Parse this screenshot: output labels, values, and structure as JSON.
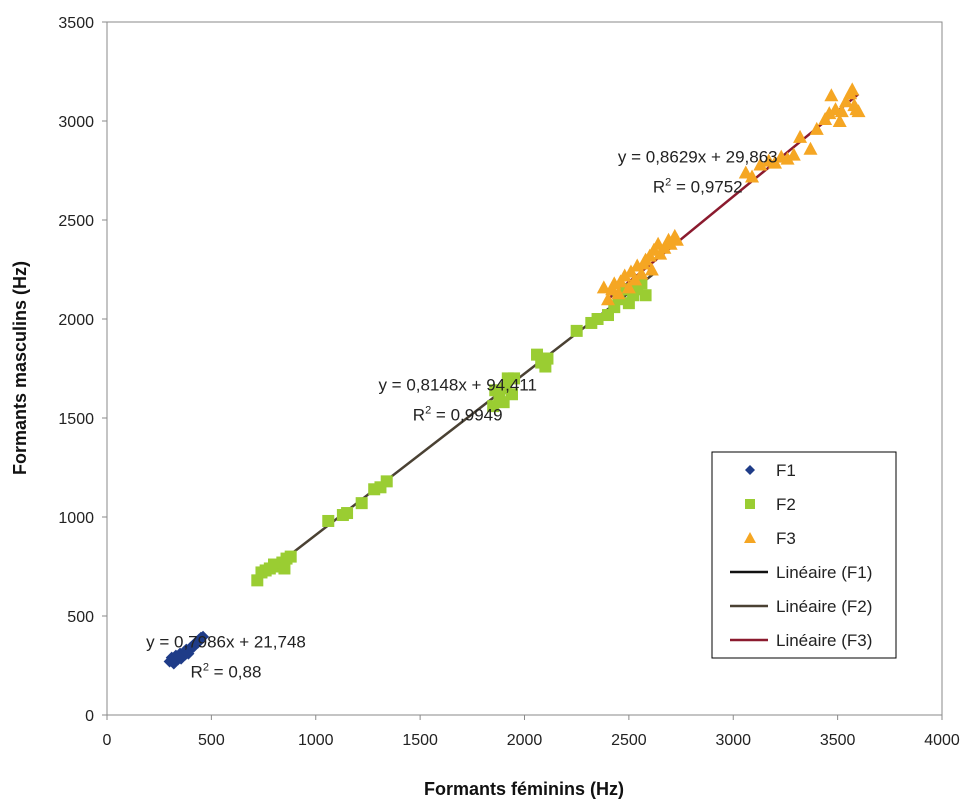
{
  "chart_data": {
    "type": "scatter",
    "xlabel": "Formants féminins (Hz)",
    "ylabel": "Formants masculins (Hz)",
    "xlim": [
      0,
      4000
    ],
    "ylim": [
      0,
      3500
    ],
    "xticks": [
      "0",
      "500",
      "1000",
      "1500",
      "2000",
      "2500",
      "3000",
      "3500",
      "4000"
    ],
    "yticks": [
      "0",
      "500",
      "1000",
      "1500",
      "2000",
      "2500",
      "3000",
      "3500"
    ],
    "grid": false,
    "legend_position": "right",
    "series": [
      {
        "name": "F1",
        "marker": "diamond",
        "color": "#1f3c88",
        "points": [
          [
            300,
            270
          ],
          [
            310,
            290
          ],
          [
            320,
            260
          ],
          [
            330,
            300
          ],
          [
            340,
            280
          ],
          [
            350,
            310
          ],
          [
            360,
            300
          ],
          [
            370,
            320
          ],
          [
            380,
            330
          ],
          [
            390,
            310
          ],
          [
            400,
            340
          ],
          [
            410,
            350
          ],
          [
            420,
            360
          ],
          [
            430,
            370
          ],
          [
            440,
            380
          ],
          [
            450,
            390
          ],
          [
            460,
            395
          ],
          [
            355,
            285
          ],
          [
            375,
            305
          ],
          [
            395,
            330
          ],
          [
            415,
            345
          ],
          [
            435,
            365
          ],
          [
            320,
            285
          ],
          [
            345,
            295
          ]
        ]
      },
      {
        "name": "F2",
        "marker": "square",
        "color": "#9acd32",
        "points": [
          [
            720,
            680
          ],
          [
            740,
            720
          ],
          [
            760,
            730
          ],
          [
            780,
            740
          ],
          [
            800,
            760
          ],
          [
            820,
            750
          ],
          [
            840,
            770
          ],
          [
            850,
            740
          ],
          [
            860,
            790
          ],
          [
            880,
            800
          ],
          [
            1060,
            980
          ],
          [
            1130,
            1010
          ],
          [
            1150,
            1020
          ],
          [
            1220,
            1070
          ],
          [
            1280,
            1140
          ],
          [
            1310,
            1150
          ],
          [
            1340,
            1180
          ],
          [
            1850,
            1560
          ],
          [
            1860,
            1640
          ],
          [
            1880,
            1600
          ],
          [
            1900,
            1580
          ],
          [
            1910,
            1650
          ],
          [
            1920,
            1700
          ],
          [
            1940,
            1620
          ],
          [
            1950,
            1700
          ],
          [
            2060,
            1820
          ],
          [
            2080,
            1780
          ],
          [
            2090,
            1800
          ],
          [
            2100,
            1760
          ],
          [
            2110,
            1800
          ],
          [
            2250,
            1940
          ],
          [
            2320,
            1980
          ],
          [
            2350,
            2000
          ],
          [
            2400,
            2020
          ],
          [
            2430,
            2060
          ],
          [
            2450,
            2100
          ],
          [
            2480,
            2150
          ],
          [
            2500,
            2080
          ],
          [
            2520,
            2120
          ],
          [
            2540,
            2150
          ],
          [
            2560,
            2180
          ],
          [
            2580,
            2120
          ]
        ]
      },
      {
        "name": "F3",
        "marker": "triangle",
        "color": "#f5a623",
        "points": [
          [
            2380,
            2160
          ],
          [
            2400,
            2100
          ],
          [
            2420,
            2150
          ],
          [
            2430,
            2180
          ],
          [
            2450,
            2130
          ],
          [
            2460,
            2190
          ],
          [
            2480,
            2220
          ],
          [
            2500,
            2160
          ],
          [
            2510,
            2240
          ],
          [
            2530,
            2200
          ],
          [
            2540,
            2270
          ],
          [
            2560,
            2230
          ],
          [
            2570,
            2280
          ],
          [
            2580,
            2300
          ],
          [
            2600,
            2320
          ],
          [
            2610,
            2250
          ],
          [
            2620,
            2350
          ],
          [
            2640,
            2380
          ],
          [
            2650,
            2330
          ],
          [
            2670,
            2360
          ],
          [
            2690,
            2400
          ],
          [
            2700,
            2380
          ],
          [
            2720,
            2420
          ],
          [
            2730,
            2400
          ],
          [
            3060,
            2740
          ],
          [
            3090,
            2720
          ],
          [
            3130,
            2780
          ],
          [
            3170,
            2800
          ],
          [
            3200,
            2790
          ],
          [
            3230,
            2820
          ],
          [
            3260,
            2810
          ],
          [
            3290,
            2830
          ],
          [
            3320,
            2920
          ],
          [
            3370,
            2860
          ],
          [
            3400,
            2960
          ],
          [
            3440,
            3010
          ],
          [
            3460,
            3040
          ],
          [
            3470,
            3130
          ],
          [
            3490,
            3060
          ],
          [
            3510,
            3000
          ],
          [
            3520,
            3050
          ],
          [
            3540,
            3100
          ],
          [
            3560,
            3140
          ],
          [
            3570,
            3160
          ],
          [
            3580,
            3080
          ],
          [
            3590,
            3060
          ],
          [
            3600,
            3050
          ]
        ]
      }
    ],
    "trendlines": [
      {
        "name": "Linéaire (F1)",
        "color": "#111111",
        "slope": 0.7986,
        "intercept": 21.748,
        "x_range": [
          300,
          460
        ]
      },
      {
        "name": "Linéaire (F2)",
        "color": "#4a4133",
        "slope": 0.8148,
        "intercept": 94.411,
        "x_range": [
          720,
          2620
        ]
      },
      {
        "name": "Linéaire (F3)",
        "color": "#8b1a2e",
        "slope": 0.8629,
        "intercept": 29.863,
        "x_range": [
          2390,
          3600
        ]
      }
    ],
    "annotations": [
      {
        "equation": "y = 0,7986x + 21,748",
        "r2_prefix": "R",
        "r2_exp": "2",
        "r2_value": " = 0,88",
        "anchor_x": 570,
        "anchor_y": 340
      },
      {
        "equation": "y = 0,8148x + 94,411",
        "r2_prefix": "R",
        "r2_exp": "2",
        "r2_value": " = 0,9949",
        "anchor_x": 1680,
        "anchor_y": 1640
      },
      {
        "equation": "y = 0,8629x + 29,863",
        "r2_prefix": "R",
        "r2_exp": "2",
        "r2_value": " = 0,9752",
        "anchor_x": 2830,
        "anchor_y": 2790
      }
    ],
    "legend": [
      {
        "label": "F1",
        "kind": "diamond",
        "color": "#1f3c88"
      },
      {
        "label": "F2",
        "kind": "square",
        "color": "#9acd32"
      },
      {
        "label": "F3",
        "kind": "triangle",
        "color": "#f5a623"
      },
      {
        "label": "Linéaire (F1)",
        "kind": "line",
        "color": "#111111"
      },
      {
        "label": "Linéaire (F2)",
        "kind": "line",
        "color": "#4a4133"
      },
      {
        "label": "Linéaire (F3)",
        "kind": "line",
        "color": "#8b1a2e"
      }
    ]
  }
}
